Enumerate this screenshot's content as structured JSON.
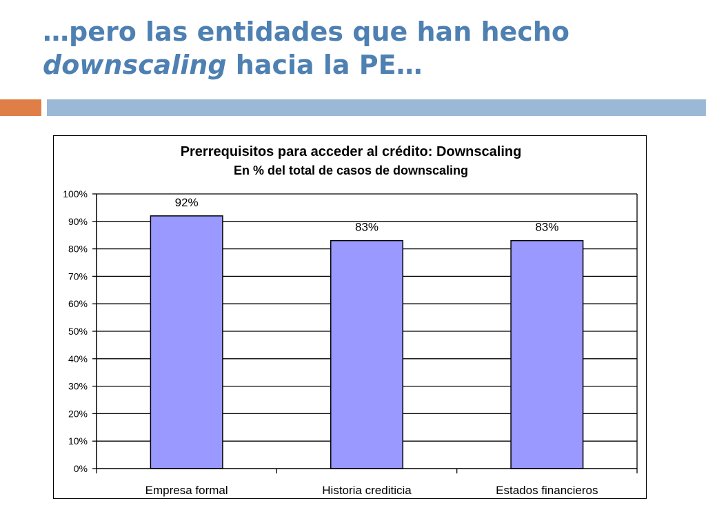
{
  "slide": {
    "title_line1": "…pero las entidades que han hecho",
    "title_line2_italic": "downscaling",
    "title_line2_rest": " hacia la PE…"
  },
  "colors": {
    "title": "#4e80b2",
    "accent": "#df7f47",
    "rule": "#9bb8d6",
    "bar_fill": "#9999ff"
  },
  "chart_data": {
    "type": "bar",
    "title": "Prerrequisitos para acceder al crédito: Downscaling",
    "subtitle": "En % del total de casos de downscaling",
    "categories": [
      "Empresa formal",
      "Historia crediticia",
      "Estados financieros"
    ],
    "values": [
      92,
      83,
      83
    ],
    "data_labels": [
      "92%",
      "83%",
      "83%"
    ],
    "y_ticks": [
      "0%",
      "10%",
      "20%",
      "30%",
      "40%",
      "50%",
      "60%",
      "70%",
      "80%",
      "90%",
      "100%"
    ],
    "ylim": [
      0,
      100
    ],
    "grid": true,
    "legend": "none"
  }
}
